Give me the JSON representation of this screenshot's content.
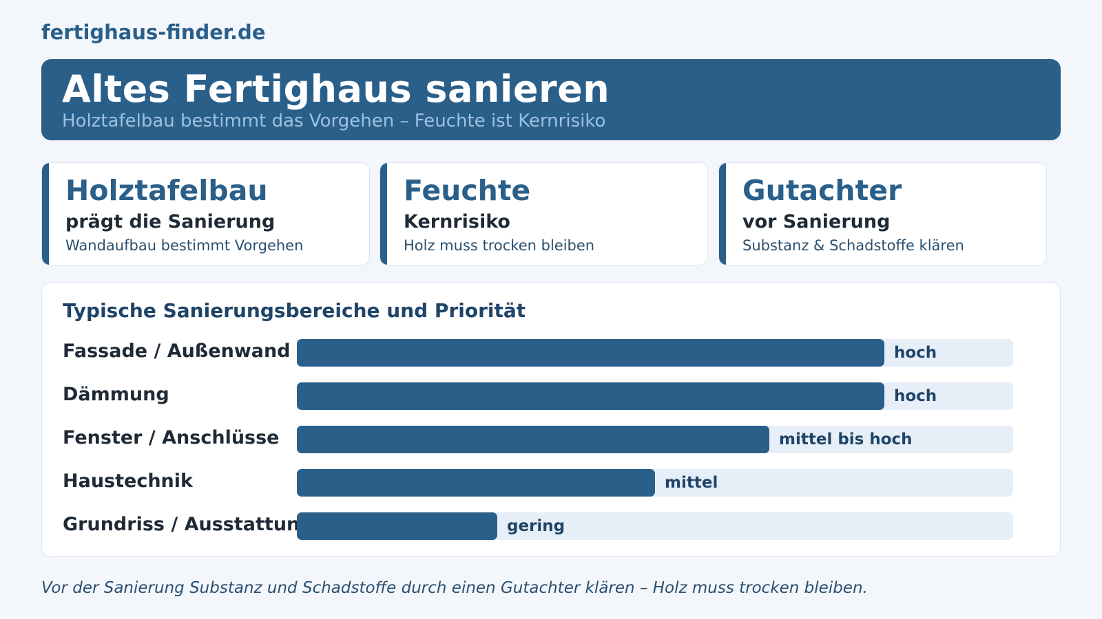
{
  "site": "fertighaus-finder.de",
  "banner": {
    "title": "Altes Fertighaus sanieren",
    "subtitle": "Holztafelbau bestimmt das Vorgehen – Feuchte ist Kernrisiko"
  },
  "cards": [
    {
      "title": "Holztafelbau",
      "subtitle": "prägt die Sanierung",
      "note": "Wandaufbau bestimmt Vorgehen"
    },
    {
      "title": "Feuchte",
      "subtitle": "Kernrisiko",
      "note": "Holz muss trocken bleiben"
    },
    {
      "title": "Gutachter",
      "subtitle": "vor Sanierung",
      "note": "Substanz & Schadstoffe klären"
    }
  ],
  "chart_data": {
    "type": "bar",
    "orientation": "horizontal",
    "title": "Typische Sanierungsbereiche und Priorität",
    "categories": [
      "Fassade / Außenwand",
      "Dämmung",
      "Fenster / Anschlüsse",
      "Haustechnik",
      "Grundriss / Ausstattung"
    ],
    "values": [
      0.82,
      0.82,
      0.66,
      0.5,
      0.28
    ],
    "value_labels": [
      "hoch",
      "hoch",
      "mittel bis hoch",
      "mittel",
      "gering"
    ],
    "xlim": [
      0,
      1
    ],
    "grid": false,
    "legend": "none",
    "colors": {
      "bar": "#2a5f8a",
      "track": "#e6eef7"
    }
  },
  "footer": "Vor der Sanierung Substanz und Schadstoffe durch einen Gutachter klären – Holz muss trocken bleiben."
}
